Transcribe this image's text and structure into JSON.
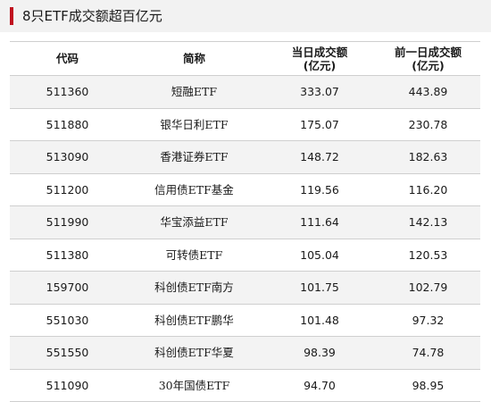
{
  "title": "8只ETF成交额超百亿元",
  "header": {
    "code": "代码",
    "name": "简称",
    "today_line1": "当日成交额",
    "today_line2": "(亿元)",
    "prev_line1": "前一日成交额",
    "prev_line2": "(亿元)"
  },
  "rows": [
    {
      "code": "511360",
      "name": "短融ETF",
      "today": "333.07",
      "prev": "443.89"
    },
    {
      "code": "511880",
      "name": "银华日利ETF",
      "today": "175.07",
      "prev": "230.78"
    },
    {
      "code": "513090",
      "name": "香港证券ETF",
      "today": "148.72",
      "prev": "182.63"
    },
    {
      "code": "511200",
      "name": "信用债ETF基金",
      "today": "119.56",
      "prev": "116.20"
    },
    {
      "code": "511990",
      "name": "华宝添益ETF",
      "today": "111.64",
      "prev": "142.13"
    },
    {
      "code": "511380",
      "name": "可转债ETF",
      "today": "105.04",
      "prev": "120.53"
    },
    {
      "code": "159700",
      "name": "科创债ETF南方",
      "today": "101.75",
      "prev": "102.79"
    },
    {
      "code": "551030",
      "name": "科创债ETF鹏华",
      "today": "101.48",
      "prev": "97.32"
    },
    {
      "code": "551550",
      "name": "科创债ETF华夏",
      "today": "98.39",
      "prev": "74.78"
    },
    {
      "code": "511090",
      "name": "30年国债ETF",
      "today": "94.70",
      "prev": "98.95"
    }
  ]
}
